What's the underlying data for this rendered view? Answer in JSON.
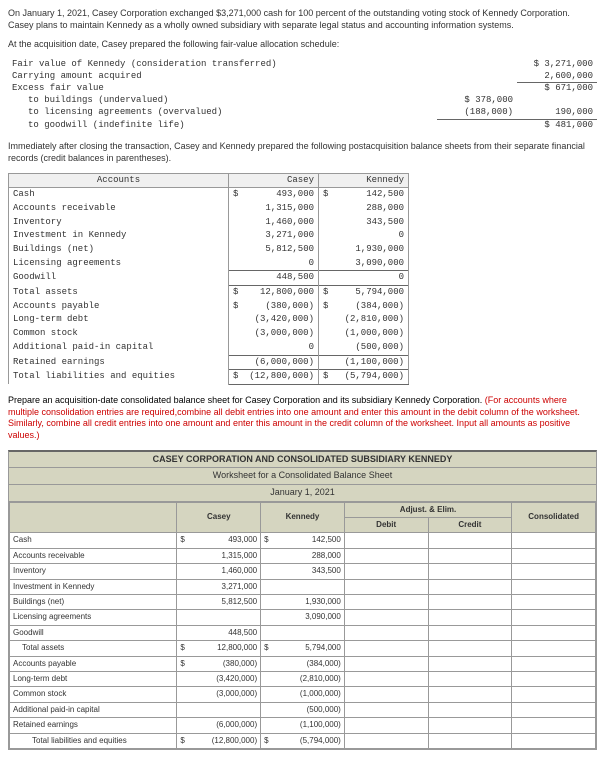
{
  "intro": {
    "p1": "On January 1, 2021, Casey Corporation exchanged $3,271,000 cash for 100 percent of the outstanding voting stock of Kennedy Corporation. Casey plans to maintain Kennedy as a wholly owned subsidiary with separate legal status and accounting information systems.",
    "p2": "At the acquisition date, Casey prepared the following fair-value allocation schedule:"
  },
  "schedule": {
    "rows": [
      {
        "label": "Fair value of Kennedy (consideration transferred)",
        "c1": "",
        "c2": "$ 3,271,000"
      },
      {
        "label": "Carrying amount acquired",
        "c1": "",
        "c2": "2,600,000",
        "u2": true
      },
      {
        "label": "Excess fair value",
        "c1": "",
        "c2": "$    671,000"
      },
      {
        "label": "to buildings (undervalued)",
        "c1": "$  378,000",
        "c2": "",
        "indent": true
      },
      {
        "label": "to licensing agreements (overvalued)",
        "c1": "(188,000)",
        "c2": "190,000",
        "indent": true,
        "u1": true,
        "u2": true
      },
      {
        "label": "to goodwill (indefinite life)",
        "c1": "",
        "c2": "$    481,000",
        "indent": true
      }
    ]
  },
  "midtext": "Immediately after closing the transaction, Casey and Kennedy prepared the following postacquisition balance sheets from their separate financial records (credit balances in parentheses).",
  "bs": {
    "h_acct": "Accounts",
    "h_casey": "Casey",
    "h_kennedy": "Kennedy",
    "rows": [
      {
        "a": "Cash",
        "c": "493,000",
        "cd": "$",
        "k": "142,500",
        "kd": "$"
      },
      {
        "a": "Accounts receivable",
        "c": "1,315,000",
        "k": "288,000"
      },
      {
        "a": "Inventory",
        "c": "1,460,000",
        "k": "343,500"
      },
      {
        "a": "Investment in Kennedy",
        "c": "3,271,000",
        "k": "0"
      },
      {
        "a": "Buildings (net)",
        "c": "5,812,500",
        "k": "1,930,000"
      },
      {
        "a": "Licensing agreements",
        "c": "0",
        "k": "3,090,000"
      },
      {
        "a": "Goodwill",
        "c": "448,500",
        "k": "0",
        "u": true
      },
      {
        "a": "Total assets",
        "i": 1,
        "c": "12,800,000",
        "cd": "$",
        "k": "5,794,000",
        "kd": "$",
        "u": true
      },
      {
        "a": "Accounts payable",
        "c": "(380,000)",
        "cd": "$",
        "k": "(384,000)",
        "kd": "$"
      },
      {
        "a": "Long-term debt",
        "c": "(3,420,000)",
        "k": "(2,810,000)"
      },
      {
        "a": "Common stock",
        "c": "(3,000,000)",
        "k": "(1,000,000)"
      },
      {
        "a": "Additional paid-in capital",
        "c": "0",
        "k": "(500,000)"
      },
      {
        "a": "Retained earnings",
        "c": "(6,000,000)",
        "k": "(1,100,000)",
        "u": true
      },
      {
        "a": "Total liabilities and equities",
        "i": 1,
        "c": "(12,800,000)",
        "cd": "$",
        "k": "(5,794,000)",
        "kd": "$",
        "f": true
      }
    ]
  },
  "instr": {
    "black": "Prepare an acquisition-date consolidated balance sheet for Casey Corporation and its subsidiary Kennedy Corporation. ",
    "red": "(For accounts where multiple consolidation entries are required,combine all debit entries into one amount and enter this amount in the debit column of the worksheet. Similarly, combine all credit entries into one amount and enter this amount in the credit column of the worksheet. Input all amounts as positive values.)"
  },
  "ws": {
    "title1": "CASEY CORPORATION AND CONSOLIDATED SUBSIDIARY KENNEDY",
    "title2": "Worksheet for a Consolidated Balance Sheet",
    "title3": "January 1, 2021",
    "h_adjust": "Adjust. & Elim.",
    "h_casey": "Casey",
    "h_kennedy": "Kennedy",
    "h_debit": "Debit",
    "h_credit": "Credit",
    "h_cons": "Consolidated",
    "rows": [
      {
        "a": "Cash",
        "c": "493,000",
        "cd": "$",
        "k": "142,500",
        "kd": "$"
      },
      {
        "a": "Accounts receivable",
        "c": "1,315,000",
        "k": "288,000"
      },
      {
        "a": "Inventory",
        "c": "1,460,000",
        "k": "343,500"
      },
      {
        "a": "Investment in Kennedy",
        "c": "3,271,000",
        "k": ""
      },
      {
        "a": "Buildings (net)",
        "c": "5,812,500",
        "k": "1,930,000"
      },
      {
        "a": "Licensing agreements",
        "c": "",
        "k": "3,090,000"
      },
      {
        "a": "Goodwill",
        "c": "448,500",
        "k": ""
      },
      {
        "a": "Total assets",
        "i": 1,
        "c": "12,800,000",
        "cd": "$",
        "k": "5,794,000",
        "kd": "$"
      },
      {
        "a": "Accounts payable",
        "c": "(380,000)",
        "cd": "$",
        "k": "(384,000)"
      },
      {
        "a": "Long-term debt",
        "c": "(3,420,000)",
        "k": "(2,810,000)"
      },
      {
        "a": "Common stock",
        "c": "(3,000,000)",
        "k": "(1,000,000)"
      },
      {
        "a": "Additional paid-in capital",
        "c": "",
        "k": "(500,000)"
      },
      {
        "a": "Retained earnings",
        "c": "(6,000,000)",
        "k": "(1,100,000)"
      },
      {
        "a": "Total liabilities and equities",
        "i": 2,
        "c": "(12,800,000)",
        "cd": "$",
        "k": "(5,794,000)",
        "kd": "$"
      }
    ]
  }
}
